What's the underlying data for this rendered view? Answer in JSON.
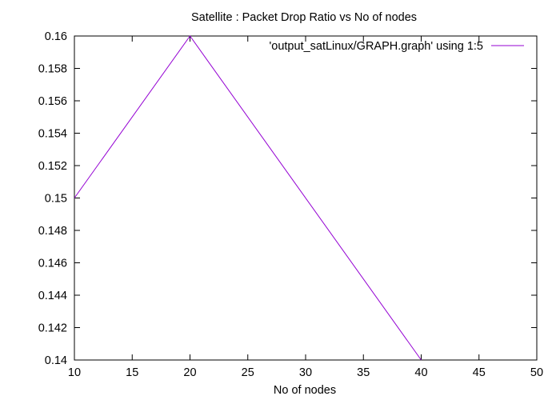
{
  "colors": {
    "background": "#ffffff",
    "axis": "#000000",
    "series": "#9400d3"
  },
  "chart_data": {
    "type": "line",
    "title": "Satellite : Packet Drop Ratio vs No of nodes",
    "xlabel": "No of nodes",
    "ylabel": "",
    "xlim": [
      10,
      50
    ],
    "ylim": [
      0.14,
      0.16
    ],
    "xticks": [
      10,
      15,
      20,
      25,
      30,
      35,
      40,
      45,
      50
    ],
    "xtick_labels": [
      "10",
      "15",
      "20",
      "25",
      "30",
      "35",
      "40",
      "45",
      "50"
    ],
    "yticks": [
      0.14,
      0.142,
      0.144,
      0.146,
      0.148,
      0.15,
      0.152,
      0.154,
      0.156,
      0.158,
      0.16
    ],
    "ytick_labels": [
      "0.14",
      "0.142",
      "0.144",
      "0.146",
      "0.148",
      "0.15",
      "0.152",
      "0.154",
      "0.156",
      "0.158",
      "0.16"
    ],
    "grid": false,
    "legend_position": "top-right",
    "series": [
      {
        "name": "'output_satLinux/GRAPH.graph' using 1:5",
        "x": [
          10,
          20,
          40
        ],
        "y": [
          0.15,
          0.16,
          0.14
        ]
      }
    ]
  }
}
